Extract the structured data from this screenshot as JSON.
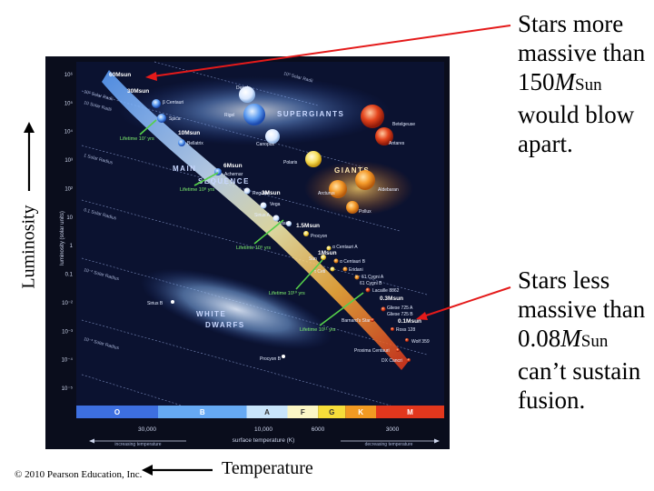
{
  "annotations": {
    "top": {
      "prefix": "Stars more massive than 150",
      "symbol": "M",
      "sub": "Sun",
      "suffix": "would blow apart."
    },
    "bottom": {
      "prefix": "Stars less massive than 0.08",
      "symbol": "M",
      "sub": "Sun",
      "suffix": "can’t sustain fusion."
    }
  },
  "outer_labels": {
    "luminosity": "Luminosity",
    "temperature": "Temperature",
    "copyright": "© 2010 Pearson Education, Inc."
  },
  "diagram": {
    "y_axis_label": "luminosity (solar units)",
    "x_axis_label": "surface temperature (K)",
    "increasing_temperature": "increasing temperature",
    "decreasing_temperature": "decreasing temperature",
    "y_ticks": [
      "10⁶",
      "10⁵",
      "10⁴",
      "10³",
      "10²",
      "10",
      "1",
      "0.1",
      "10⁻²",
      "10⁻³",
      "10⁻⁴",
      "10⁻⁵"
    ],
    "x_ticks": [
      "30,000",
      "10,000",
      "6000",
      "3000"
    ],
    "spectral_classes": [
      {
        "letter": "O",
        "color": "#3d6fe0"
      },
      {
        "letter": "B",
        "color": "#66a9f3"
      },
      {
        "letter": "A",
        "color": "#c8e4fb"
      },
      {
        "letter": "F",
        "color": "#fbf6c6"
      },
      {
        "letter": "G",
        "color": "#f6dd3a"
      },
      {
        "letter": "K",
        "color": "#f29a22"
      },
      {
        "letter": "M",
        "color": "#e2371d"
      }
    ],
    "regions": {
      "supergiants": "SUPERGIANTS",
      "giants": "GIANTS",
      "main_1": "MAIN",
      "main_2": "SEQUENCE",
      "white_1": "WHITE",
      "white_2": "DWARFS"
    },
    "radius_lines": [
      "10³ Solar Radii",
      "10² Solar Radii",
      "10 Solar Radii",
      "1 Solar Radius",
      "0.1 Solar Radius",
      "10⁻² Solar Radius",
      "10⁻³ Solar Radius"
    ],
    "masses": [
      "60Msun",
      "30Msun",
      "10Msun",
      "6Msun",
      "3Msun",
      "1.5Msun",
      "1Msun",
      "0.3Msun",
      "0.1Msun"
    ],
    "lifetimes": [
      "Lifetime 10⁷ yrs",
      "Lifetime 10⁸ yrs",
      "Lifetime 10⁹ yrs",
      "Lifetime 10¹⁰ yrs",
      "Lifetime 10¹¹ yrs"
    ],
    "star_names": [
      "Deneb",
      "Rigel",
      "Betelgeuse",
      "Antares",
      "Canopus",
      "Polaris",
      "β Centauri",
      "Spica",
      "Bellatrix",
      "Achernar",
      "Regulus",
      "Vega",
      "Sirius A",
      "Altair",
      "Procyon",
      "Arcturus",
      "Aldebaran",
      "Pollux",
      "α Centauri A",
      "Sun",
      "α Centauri B",
      "τ Ceti",
      "Eridani",
      "61 Cygni A",
      "61 Cygni B",
      "Lacaille 8862",
      "Gliese 725 A",
      "Gliese 725 B",
      "Ross 128",
      "Barnard's Star",
      "Wolf 359",
      "Proxima Centauri",
      "DX Cancri",
      "Sirius B",
      "Procyon B"
    ]
  }
}
